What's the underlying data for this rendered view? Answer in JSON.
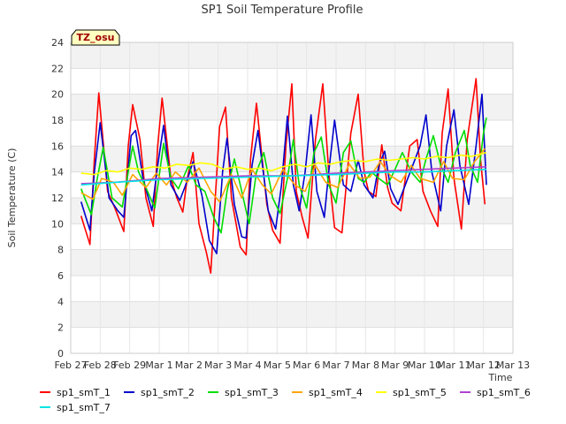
{
  "chart_data": {
    "type": "line",
    "title": "SP1 Soil Temperature Profile",
    "xlabel": "Time",
    "ylabel": "Soil Temperature (C)",
    "ylim": [
      0,
      24
    ],
    "yticks": [
      0,
      2,
      4,
      6,
      8,
      10,
      12,
      14,
      16,
      18,
      20,
      22,
      24
    ],
    "xlim": [
      0,
      15
    ],
    "xtick_labels": [
      "Feb 27",
      "Feb 28",
      "Feb 29",
      "Mar 1",
      "Mar 2",
      "Mar 3",
      "Mar 4",
      "Mar 5",
      "Mar 6",
      "Mar 7",
      "Mar 8",
      "Mar 9",
      "Mar 10",
      "Mar 11",
      "Mar 12",
      "Mar 13"
    ],
    "badge": "TZ_osu",
    "x_note": "x = days since Feb 27 00:00",
    "series": [
      {
        "name": "sp1_smT_1",
        "color": "#ff0000",
        "x": [
          0.35,
          0.65,
          0.8,
          0.95,
          1.25,
          1.5,
          1.8,
          1.95,
          2.1,
          2.35,
          2.55,
          2.8,
          2.95,
          3.1,
          3.4,
          3.6,
          3.8,
          3.95,
          4.15,
          4.35,
          4.6,
          4.75,
          5.05,
          5.25,
          5.45,
          5.75,
          5.95,
          6.1,
          6.3,
          6.65,
          6.85,
          7.1,
          7.3,
          7.5,
          7.65,
          7.85,
          8.05,
          8.3,
          8.55,
          8.75,
          8.95,
          9.2,
          9.5,
          9.75,
          9.95,
          10.1,
          10.35,
          10.55,
          10.75,
          10.9,
          11.2,
          11.5,
          11.75,
          11.95,
          12.2,
          12.45,
          12.6,
          12.8,
          13.0,
          13.25,
          13.45,
          13.75,
          13.9,
          14.05
        ],
        "values": [
          10.6,
          8.4,
          15.0,
          20.1,
          12.5,
          11.2,
          9.4,
          16.0,
          19.2,
          16.5,
          12.0,
          9.8,
          16.0,
          19.7,
          13.5,
          12.0,
          10.9,
          13.5,
          15.5,
          10.0,
          7.8,
          6.2,
          17.5,
          19.0,
          12.0,
          8.2,
          7.6,
          15.0,
          19.3,
          11.5,
          9.5,
          8.5,
          16.0,
          20.8,
          12.5,
          10.5,
          8.9,
          16.5,
          20.8,
          14.0,
          9.7,
          9.3,
          17.0,
          20.0,
          14.0,
          12.5,
          12.1,
          16.1,
          12.8,
          11.6,
          11.0,
          16.0,
          16.5,
          12.5,
          11.0,
          9.8,
          17.0,
          20.4,
          13.5,
          9.6,
          16.5,
          21.2,
          15.0,
          11.5
        ]
      },
      {
        "name": "sp1_smT_2",
        "color": "#0000cc",
        "x": [
          0.35,
          0.65,
          0.8,
          1.0,
          1.3,
          1.6,
          1.8,
          2.05,
          2.2,
          2.45,
          2.75,
          2.95,
          3.15,
          3.4,
          3.7,
          3.9,
          4.15,
          4.45,
          4.7,
          4.95,
          5.15,
          5.3,
          5.55,
          5.8,
          5.95,
          6.15,
          6.35,
          6.7,
          6.95,
          7.15,
          7.35,
          7.55,
          7.75,
          7.95,
          8.15,
          8.35,
          8.6,
          8.75,
          8.95,
          9.25,
          9.5,
          9.75,
          9.95,
          10.25,
          10.45,
          10.65,
          10.85,
          11.1,
          11.35,
          11.55,
          11.85,
          12.05,
          12.25,
          12.55,
          12.75,
          13.0,
          13.2,
          13.5,
          13.75,
          13.95,
          14.1
        ],
        "values": [
          11.7,
          9.5,
          14.0,
          17.8,
          12.0,
          11.0,
          10.5,
          16.8,
          17.2,
          13.5,
          11.0,
          14.5,
          17.6,
          13.0,
          11.8,
          13.0,
          14.8,
          12.2,
          8.7,
          7.7,
          14.0,
          16.6,
          11.5,
          9.0,
          8.9,
          14.5,
          17.2,
          11.0,
          9.6,
          13.0,
          18.3,
          13.0,
          11.0,
          14.0,
          18.4,
          12.5,
          10.5,
          14.0,
          18.0,
          13.0,
          12.5,
          14.9,
          13.0,
          12.0,
          14.5,
          15.6,
          12.7,
          11.5,
          13.0,
          14.2,
          16.0,
          18.4,
          14.0,
          11.0,
          16.0,
          18.8,
          14.5,
          11.5,
          16.0,
          20.0,
          13.0
        ]
      },
      {
        "name": "sp1_smT_3",
        "color": "#00dd00",
        "x": [
          0.35,
          0.7,
          0.9,
          1.1,
          1.4,
          1.75,
          2.1,
          2.3,
          2.55,
          2.85,
          3.15,
          3.4,
          3.65,
          4.0,
          4.25,
          4.55,
          4.85,
          5.1,
          5.3,
          5.55,
          5.85,
          6.05,
          6.3,
          6.55,
          6.85,
          7.1,
          7.35,
          7.55,
          7.75,
          8.0,
          8.25,
          8.5,
          8.75,
          9.0,
          9.25,
          9.5,
          9.75,
          9.95,
          10.2,
          10.45,
          10.75,
          11.0,
          11.25,
          11.55,
          11.85,
          12.05,
          12.3,
          12.55,
          12.8,
          13.05,
          13.35,
          13.55,
          13.8,
          14.0,
          14.1
        ],
        "values": [
          12.7,
          10.7,
          13.5,
          15.9,
          12.0,
          11.3,
          16.0,
          14.0,
          12.8,
          11.2,
          16.2,
          13.5,
          12.7,
          14.5,
          13.0,
          12.5,
          10.5,
          9.3,
          12.5,
          15.0,
          12.0,
          10.0,
          14.0,
          15.5,
          12.0,
          10.8,
          13.5,
          16.5,
          13.0,
          11.2,
          15.5,
          16.7,
          13.0,
          11.6,
          15.5,
          16.4,
          13.5,
          13.2,
          14.0,
          13.5,
          13.0,
          14.2,
          15.5,
          14.0,
          13.2,
          15.0,
          16.8,
          14.5,
          13.2,
          15.5,
          17.2,
          14.5,
          13.2,
          17.0,
          18.2
        ]
      },
      {
        "name": "sp1_smT_4",
        "color": "#ffa500",
        "x": [
          0.35,
          0.75,
          1.05,
          1.45,
          1.75,
          2.1,
          2.55,
          2.9,
          3.25,
          3.55,
          3.95,
          4.35,
          4.75,
          5.05,
          5.45,
          5.8,
          6.15,
          6.5,
          6.8,
          7.2,
          7.6,
          7.95,
          8.3,
          8.65,
          9.05,
          9.45,
          9.8,
          10.15,
          10.5,
          10.85,
          11.2,
          11.55,
          11.85,
          12.3,
          12.65,
          12.95,
          13.35,
          13.7,
          14.05
        ],
        "values": [
          12.4,
          11.9,
          13.5,
          13.2,
          12.2,
          13.8,
          12.8,
          13.9,
          13.0,
          14.0,
          13.2,
          14.3,
          12.5,
          11.7,
          13.8,
          12.0,
          14.2,
          13.0,
          12.3,
          14.2,
          13.0,
          12.5,
          14.5,
          13.2,
          12.8,
          14.6,
          13.5,
          13.6,
          14.8,
          13.7,
          13.2,
          14.5,
          13.5,
          13.2,
          14.8,
          13.5,
          13.4,
          14.8,
          15.8
        ]
      },
      {
        "name": "sp1_smT_5",
        "color": "#ffff00",
        "x": [
          0.35,
          0.8,
          1.2,
          1.6,
          2.0,
          2.4,
          2.8,
          3.2,
          3.6,
          4.0,
          4.4,
          4.8,
          5.2,
          5.6,
          6.0,
          6.4,
          6.8,
          7.2,
          7.6,
          8.0,
          8.4,
          8.8,
          9.2,
          9.6,
          10.0,
          10.4,
          10.8,
          11.2,
          11.6,
          12.0,
          12.4,
          12.8,
          13.2,
          13.6,
          14.1
        ],
        "values": [
          13.9,
          13.8,
          14.1,
          14.0,
          14.3,
          14.2,
          14.4,
          14.3,
          14.6,
          14.5,
          14.7,
          14.6,
          14.2,
          14.4,
          14.2,
          14.3,
          14.1,
          14.4,
          14.6,
          14.4,
          14.7,
          14.6,
          14.8,
          14.9,
          14.8,
          15.0,
          14.9,
          15.0,
          15.1,
          15.0,
          15.2,
          15.1,
          15.3,
          15.2,
          15.5
        ]
      },
      {
        "name": "sp1_smT_6",
        "color": "#b040d0",
        "x": [
          0.35,
          1.5,
          3.0,
          4.5,
          6.0,
          7.5,
          9.0,
          10.0,
          11.0,
          12.0,
          13.0,
          14.1
        ],
        "values": [
          13.1,
          13.2,
          13.5,
          13.6,
          13.7,
          13.7,
          13.9,
          14.0,
          14.1,
          14.2,
          14.3,
          14.4
        ]
      },
      {
        "name": "sp1_smT_7",
        "color": "#00e5e5",
        "x": [
          0.35,
          1.5,
          3.0,
          4.5,
          6.0,
          7.5,
          9.0,
          10.0,
          11.0,
          12.0,
          13.0,
          14.1
        ],
        "values": [
          13.0,
          13.2,
          13.4,
          13.5,
          13.6,
          13.7,
          13.8,
          13.9,
          14.0,
          14.0,
          14.1,
          14.2
        ]
      }
    ]
  }
}
